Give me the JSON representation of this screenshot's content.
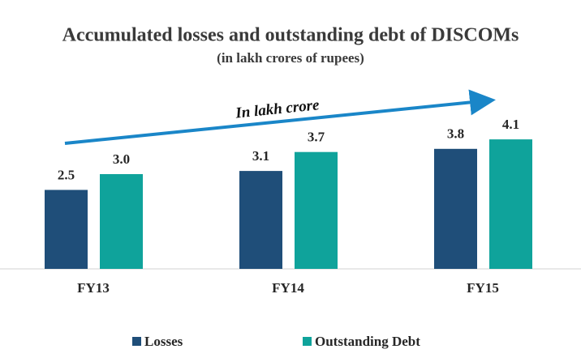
{
  "chart_data": {
    "type": "bar",
    "title": "Accumulated losses and outstanding debt of DISCOMs",
    "subtitle": "(in lakh crores of rupees)",
    "annotation": "In lakh crore",
    "categories": [
      "FY13",
      "FY14",
      "FY15"
    ],
    "series": [
      {
        "name": "Losses",
        "color": "#1f4e79",
        "values": [
          2.5,
          3.1,
          3.8
        ]
      },
      {
        "name": "Outstanding Debt",
        "color": "#0fa39b",
        "values": [
          3.0,
          3.7,
          4.1
        ],
        "value_labels": [
          "3.0",
          "3.7",
          "4.1"
        ]
      }
    ]
  }
}
